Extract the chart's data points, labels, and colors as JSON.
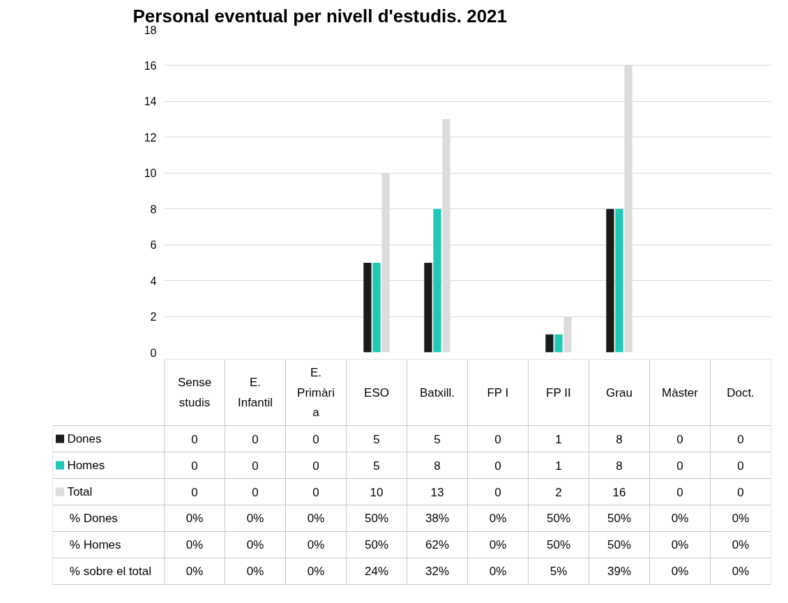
{
  "chart_data": {
    "type": "bar",
    "title": "Personal eventual per nivell d'estudis. 2021",
    "categories": [
      "Sense studis",
      "E. Infantil",
      "E. Primària",
      "ESO",
      "Batxill.",
      "FP I",
      "FP II",
      "Grau",
      "Màster",
      "Doct."
    ],
    "series": [
      {
        "name": "Dones",
        "color": "#1a1a1a",
        "values": [
          0,
          0,
          0,
          5,
          5,
          0,
          1,
          8,
          0,
          0
        ]
      },
      {
        "name": "Homes",
        "color": "#1fc9b5",
        "values": [
          0,
          0,
          0,
          5,
          8,
          0,
          1,
          8,
          0,
          0
        ]
      },
      {
        "name": "Total",
        "color": "#dcdcdc",
        "values": [
          0,
          0,
          0,
          10,
          13,
          0,
          2,
          16,
          0,
          0
        ]
      }
    ],
    "ylim": [
      0,
      18
    ],
    "yticks": [
      0,
      2,
      4,
      6,
      8,
      10,
      12,
      14,
      16,
      18
    ],
    "grid": "y",
    "legend": "bottom",
    "data_labels": true,
    "annotations": [
      "% Dones",
      "0%",
      "0%",
      "0%",
      "50%",
      "38%",
      "0%",
      "50%",
      "50%",
      "0%",
      "0%",
      "% Homes",
      "0%",
      "0%",
      "0%",
      "50%",
      "62%",
      "0%",
      "50%",
      "50%",
      "0%",
      "0%",
      "% sobre el total",
      "0%",
      "0%",
      "0%",
      "24%",
      "32%",
      "0%",
      "5%",
      "39%",
      "0%",
      "0%"
    ]
  }
}
